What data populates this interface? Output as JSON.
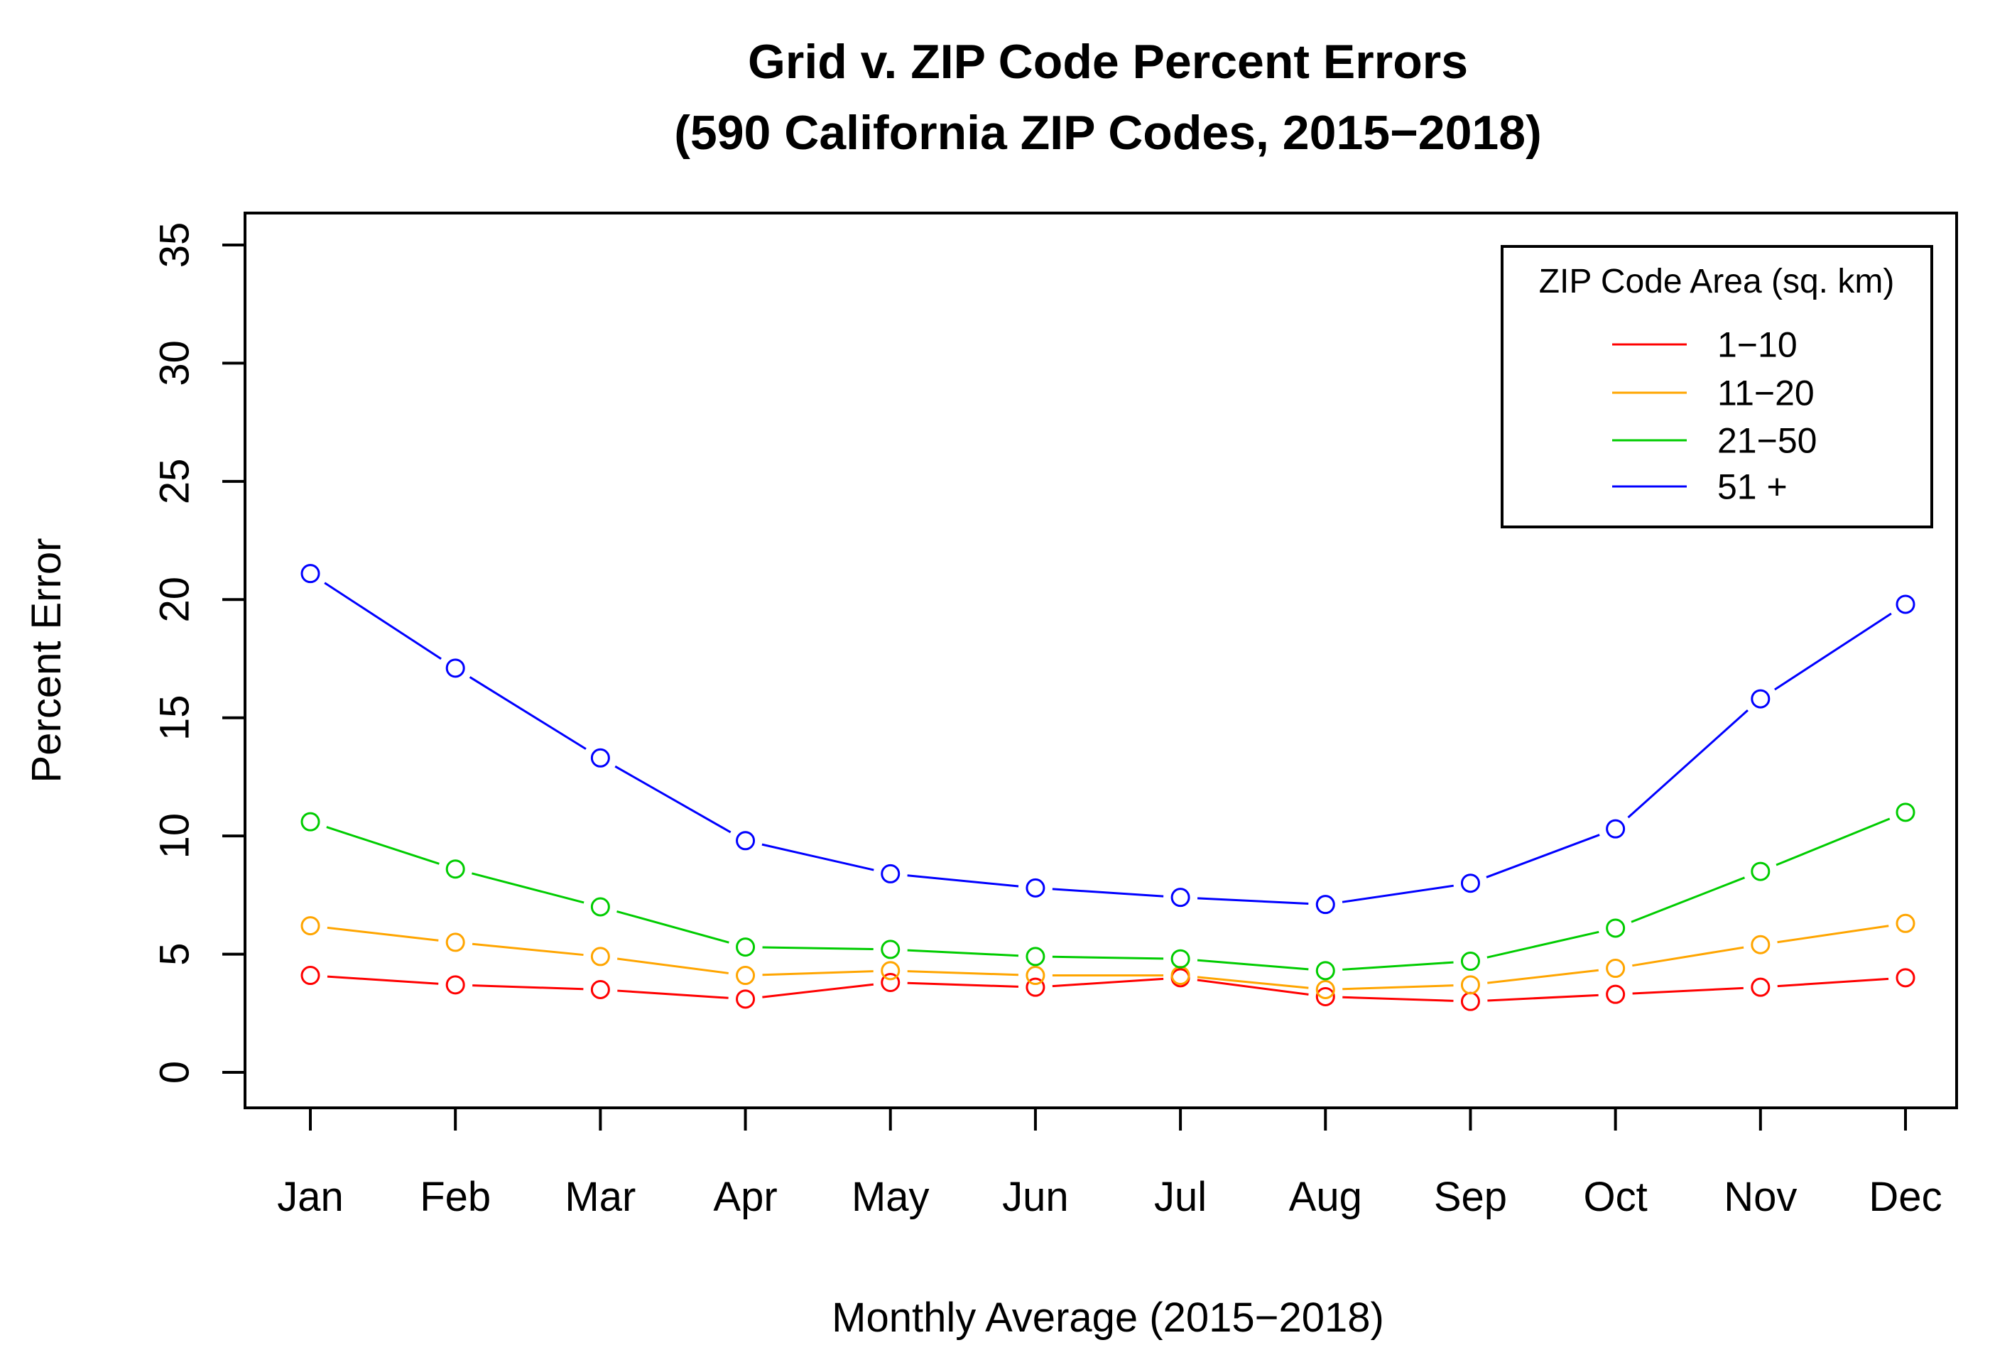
{
  "chart_data": {
    "type": "line",
    "title": "Grid v. ZIP Code Percent Errors",
    "subtitle": "(590 California ZIP Codes, 2015−2018)",
    "xlabel": "Monthly Average (2015−2018)",
    "ylabel": "Percent Error",
    "categories": [
      "Jan",
      "Feb",
      "Mar",
      "Apr",
      "May",
      "Jun",
      "Jul",
      "Aug",
      "Sep",
      "Oct",
      "Nov",
      "Dec"
    ],
    "ylim": [
      0,
      35
    ],
    "yticks": [
      0,
      5,
      10,
      15,
      20,
      25,
      30,
      35
    ],
    "grid": false,
    "markers": "open-circle",
    "legend": {
      "title": "ZIP Code Area (sq. km)",
      "placement": "top-right"
    },
    "series": [
      {
        "name": "1−10",
        "color": "#ff0000",
        "values": [
          4.1,
          3.7,
          3.5,
          3.1,
          3.8,
          3.6,
          4.0,
          3.2,
          3.0,
          3.3,
          3.6,
          4.0
        ]
      },
      {
        "name": "11−20",
        "color": "#ffa500",
        "values": [
          6.2,
          5.5,
          4.9,
          4.1,
          4.3,
          4.1,
          4.1,
          3.5,
          3.7,
          4.4,
          5.4,
          6.3
        ]
      },
      {
        "name": "21−50",
        "color": "#00cc00",
        "values": [
          10.6,
          8.6,
          7.0,
          5.3,
          5.2,
          4.9,
          4.8,
          4.3,
          4.7,
          6.1,
          8.5,
          11.0
        ]
      },
      {
        "name": "51 +",
        "color": "#0000ff",
        "values": [
          21.1,
          17.1,
          13.3,
          9.8,
          8.4,
          7.8,
          7.4,
          7.1,
          8.0,
          10.3,
          15.8,
          19.8
        ]
      }
    ]
  }
}
